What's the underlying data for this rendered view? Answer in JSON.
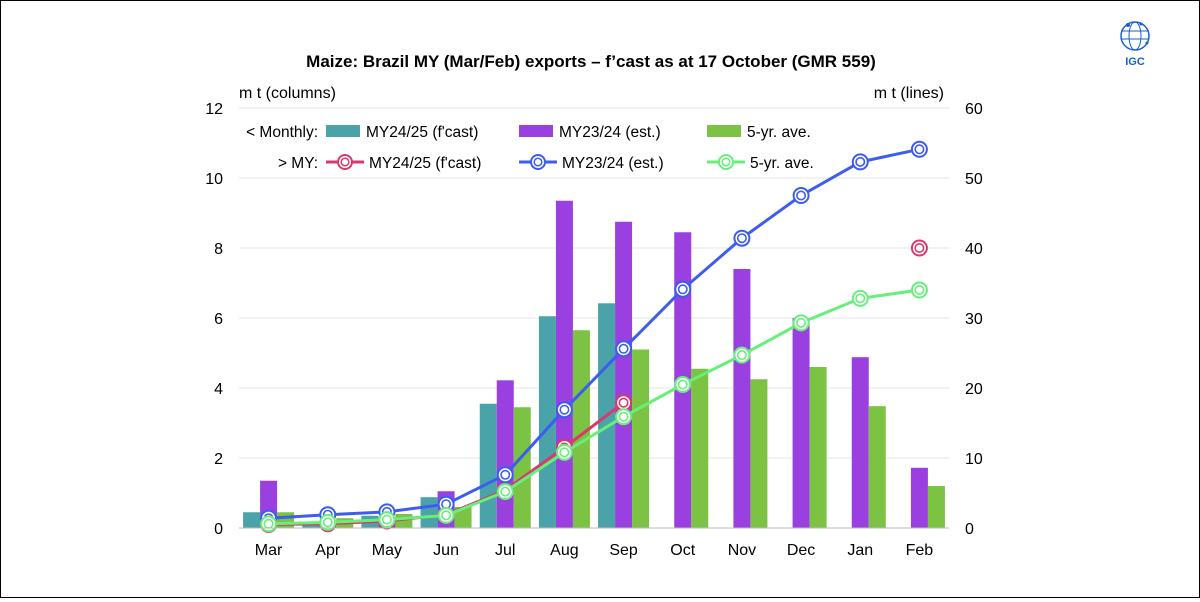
{
  "logo": {
    "text": "IGC"
  },
  "chart_data": {
    "type": "bar",
    "title": "Maize: Brazil MY (Mar/Feb) exports – f’cast as at 17 October (GMR 559)",
    "ylabel_left": "m t (columns)",
    "ylabel_right": "m t (lines)",
    "categories": [
      "Mar",
      "Apr",
      "May",
      "Jun",
      "Jul",
      "Aug",
      "Sep",
      "Oct",
      "Nov",
      "Dec",
      "Jan",
      "Feb"
    ],
    "ylim_left": [
      0,
      12
    ],
    "yticks_left": [
      "0",
      "2",
      "4",
      "6",
      "8",
      "10",
      "12"
    ],
    "ylim_right": [
      0,
      60
    ],
    "yticks_right": [
      "0",
      "10",
      "20",
      "30",
      "40",
      "50",
      "60"
    ],
    "legend": {
      "monthly_label": "< Monthly:",
      "my_label": "> MY:"
    },
    "bar_series": [
      {
        "name": "MY24/25 (f'cast)",
        "color": "#4aa3a8",
        "values": [
          0.45,
          0.1,
          0.35,
          0.88,
          3.55,
          6.05,
          6.42,
          null,
          null,
          null,
          null,
          null
        ]
      },
      {
        "name": "MY23/24 (est.)",
        "color": "#9a3fe0",
        "values": [
          1.35,
          0.12,
          0.2,
          1.05,
          4.22,
          9.35,
          8.75,
          8.45,
          7.4,
          6.0,
          4.88,
          1.72
        ]
      },
      {
        "name": "5-yr. ave.",
        "color": "#7cc243",
        "values": [
          0.45,
          0.28,
          0.4,
          0.6,
          3.45,
          5.65,
          5.1,
          4.55,
          4.25,
          4.6,
          3.48,
          1.2
        ]
      }
    ],
    "line_series": [
      {
        "name": "MY24/25 (f'cast)",
        "color": "#d93a6b",
        "values": [
          0.5,
          0.6,
          1.0,
          1.9,
          5.4,
          11.5,
          17.9,
          null,
          null,
          null,
          null,
          40.0
        ]
      },
      {
        "name": "MY23/24 (est.)",
        "color": "#3d5cf0",
        "values": [
          1.4,
          1.9,
          2.3,
          3.4,
          7.6,
          16.9,
          25.6,
          34.1,
          41.4,
          47.5,
          52.3,
          54.1
        ]
      },
      {
        "name": "5-yr. ave.",
        "color": "#66f07a",
        "values": [
          0.6,
          0.8,
          1.2,
          1.8,
          5.2,
          10.8,
          15.9,
          20.5,
          24.7,
          29.3,
          32.8,
          34.0
        ]
      }
    ]
  }
}
